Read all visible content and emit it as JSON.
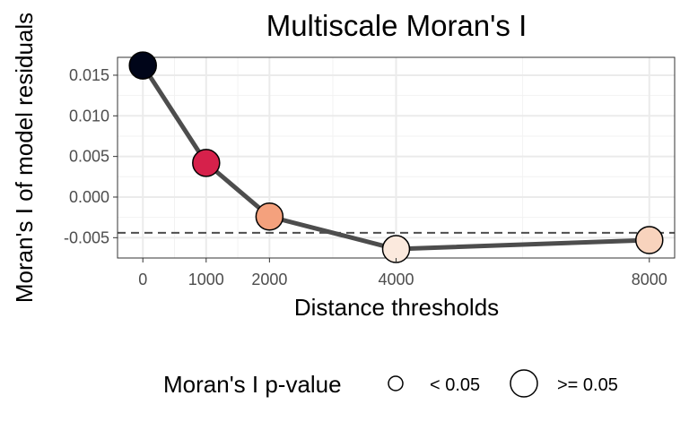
{
  "chart_data": {
    "type": "line",
    "title": "Multiscale Moran's I",
    "xlabel": "Distance thresholds",
    "ylabel": "Moran's I of model residuals",
    "x_ticks": [
      0,
      1000,
      2000,
      4000,
      8000
    ],
    "y_ticks": [
      0.015,
      0.01,
      0.005,
      0.0,
      -0.005
    ],
    "y_tick_labels": [
      "0.015",
      "0.010",
      "0.005",
      "0.000",
      "-0.005"
    ],
    "xlim": [
      -400,
      8400
    ],
    "ylim": [
      -0.0075,
      0.0172
    ],
    "reference_line": {
      "y": -0.0044,
      "style": "dashed"
    },
    "grid": true,
    "series": [
      {
        "points": [
          {
            "x": 0,
            "y": 0.0162,
            "p_value_group": ">= 0.05",
            "fill": "#000519"
          },
          {
            "x": 1000,
            "y": 0.0042,
            "p_value_group": ">= 0.05",
            "fill": "#d6214b"
          },
          {
            "x": 2000,
            "y": -0.0024,
            "p_value_group": ">= 0.05",
            "fill": "#f4a17d"
          },
          {
            "x": 4000,
            "y": -0.0064,
            "p_value_group": ">= 0.05",
            "fill": "#fbe9dd"
          },
          {
            "x": 8000,
            "y": -0.0053,
            "p_value_group": ">= 0.05",
            "fill": "#f8d3bd"
          }
        ],
        "line_color": "#4d4d4d"
      }
    ],
    "legend": {
      "title": "Moran's I p-value",
      "placement": "bottom",
      "entries": [
        {
          "label": "< 0.05",
          "size": "small"
        },
        {
          "label": ">= 0.05",
          "size": "large"
        }
      ]
    }
  }
}
